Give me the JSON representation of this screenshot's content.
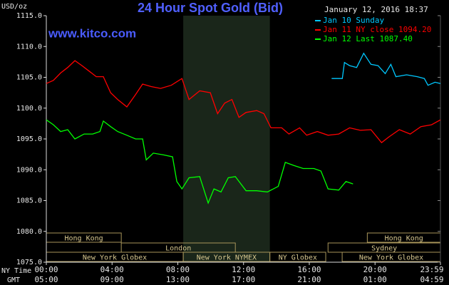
{
  "chart_data": {
    "type": "line",
    "title": "24 Hour Spot Gold (Bid)",
    "timestamp": "January 12, 2016 18:37",
    "watermark": "www.kitco.com",
    "y_label": "USD/oz",
    "x_label": "NY Time",
    "x2_label": "GMT",
    "xlim": [
      0,
      23.98
    ],
    "ylim": [
      1075,
      1115
    ],
    "xticks": [
      {
        "value": 0,
        "label": "00:00"
      },
      {
        "value": 4,
        "label": "04:00"
      },
      {
        "value": 8,
        "label": "08:00"
      },
      {
        "value": 12,
        "label": "12:00"
      },
      {
        "value": 16,
        "label": "16:00"
      },
      {
        "value": 20,
        "label": "20:00"
      },
      {
        "value": 23.98,
        "label": "23:59"
      }
    ],
    "x2ticks": [
      {
        "value": 0,
        "label": "05:00"
      },
      {
        "value": 4,
        "label": "09:00"
      },
      {
        "value": 8,
        "label": "13:00"
      },
      {
        "value": 12,
        "label": "17:00"
      },
      {
        "value": 16,
        "label": "21:00"
      },
      {
        "value": 20,
        "label": "01:00"
      },
      {
        "value": 23.98,
        "label": "04:59"
      }
    ],
    "yticks": [
      {
        "value": 1075,
        "label": "1075.0"
      },
      {
        "value": 1080,
        "label": "1080.0"
      },
      {
        "value": 1085,
        "label": "1085.0"
      },
      {
        "value": 1090,
        "label": "1090.0"
      },
      {
        "value": 1095,
        "label": "1095.0"
      },
      {
        "value": 1100,
        "label": "1100.0"
      },
      {
        "value": 1105,
        "label": "1105.0"
      },
      {
        "value": 1110,
        "label": "1110.0"
      },
      {
        "value": 1115,
        "label": "1115.0"
      }
    ],
    "shade": [
      8.33,
      13.6
    ],
    "sessions": [
      {
        "label": "Hong Kong",
        "start": 0,
        "end": 4.56,
        "row": 0
      },
      {
        "label": "Hong Kong",
        "start": 19.53,
        "end": 23.98,
        "row": 0
      },
      {
        "label": "London",
        "start": 4.56,
        "end": 11.5,
        "row": 1
      },
      {
        "label": "Sydney",
        "start": 17.14,
        "end": 23.98,
        "row": 1
      },
      {
        "label": "New York Globex",
        "start": 0,
        "end": 8.33,
        "row": 2
      },
      {
        "label": "New York NYMEX",
        "start": 8.33,
        "end": 13.6,
        "row": 2
      },
      {
        "label": "NY Globex",
        "start": 13.6,
        "end": 17,
        "row": 2
      },
      {
        "label": "New York Globex",
        "start": 18,
        "end": 23.98,
        "row": 2
      }
    ],
    "series": [
      {
        "name": "Jan 10 Sunday",
        "color": "#00c8ff",
        "x": [
          17.36,
          18.01,
          18.14,
          18.45,
          18.88,
          19.31,
          19.75,
          20.18,
          20.62,
          20.96,
          21.27,
          21.92,
          22.57,
          23.0,
          23.22,
          23.65,
          23.98
        ],
        "values": [
          1104.8,
          1104.8,
          1107.4,
          1106.9,
          1106.6,
          1108.9,
          1107.1,
          1106.9,
          1105.6,
          1107.1,
          1105.1,
          1105.4,
          1105.1,
          1104.8,
          1103.7,
          1104.2,
          1104.0
        ]
      },
      {
        "name": "Jan 11 NY close 1094.20",
        "color": "#ff0000",
        "x": [
          0,
          0.43,
          0.87,
          1.3,
          1.74,
          2.17,
          2.6,
          3.04,
          3.47,
          3.91,
          4.34,
          4.9,
          5.43,
          5.86,
          6.38,
          6.95,
          7.6,
          8.25,
          8.68,
          9.33,
          9.98,
          10.42,
          10.85,
          11.29,
          11.72,
          12.15,
          12.8,
          13.24,
          13.67,
          14.32,
          14.76,
          15.41,
          15.84,
          16.49,
          17.14,
          17.79,
          18.45,
          19.1,
          19.75,
          20.4,
          20.83,
          21.48,
          22.14,
          22.79,
          23.44,
          23.98
        ],
        "values": [
          1104.0,
          1104.5,
          1105.7,
          1106.6,
          1107.7,
          1106.9,
          1106.0,
          1105.1,
          1105.1,
          1102.5,
          1101.4,
          1100.2,
          1102.2,
          1103.9,
          1103.5,
          1103.2,
          1103.7,
          1104.8,
          1101.4,
          1102.8,
          1102.5,
          1099.1,
          1100.8,
          1101.4,
          1098.5,
          1099.3,
          1099.6,
          1099.1,
          1096.8,
          1096.8,
          1095.8,
          1096.8,
          1095.6,
          1096.2,
          1095.6,
          1095.8,
          1096.8,
          1096.4,
          1096.5,
          1094.4,
          1095.3,
          1096.5,
          1095.8,
          1097.0,
          1097.3,
          1098.1
        ]
      },
      {
        "name": "Jan 12 Last 1087.40",
        "color": "#00ff00",
        "x": [
          0,
          0.43,
          0.87,
          1.3,
          1.74,
          2.3,
          2.82,
          3.26,
          3.47,
          3.91,
          4.34,
          4.9,
          5.43,
          5.86,
          6.08,
          6.51,
          7.16,
          7.68,
          7.94,
          8.25,
          8.68,
          9.33,
          9.85,
          10.2,
          10.63,
          11.07,
          11.5,
          12.15,
          12.8,
          13.45,
          14.11,
          14.54,
          15.06,
          15.63,
          16.28,
          16.71,
          17.14,
          17.79,
          18.23,
          18.66
        ],
        "values": [
          1098.1,
          1097.3,
          1096.2,
          1096.5,
          1095.0,
          1095.8,
          1095.8,
          1096.2,
          1097.9,
          1097.0,
          1096.2,
          1095.6,
          1095.0,
          1095.0,
          1091.6,
          1092.7,
          1092.4,
          1092.1,
          1088.1,
          1086.9,
          1088.7,
          1088.9,
          1084.6,
          1086.9,
          1086.4,
          1088.7,
          1088.9,
          1086.6,
          1086.6,
          1086.4,
          1087.3,
          1091.2,
          1090.7,
          1090.2,
          1090.2,
          1089.8,
          1086.9,
          1086.7,
          1088.1,
          1087.7
        ]
      }
    ]
  }
}
